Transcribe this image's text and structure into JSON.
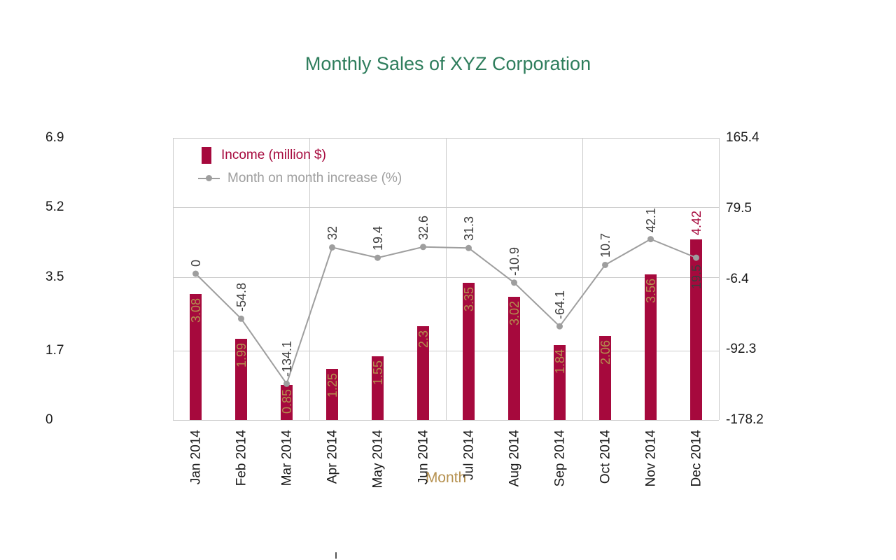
{
  "title": "Monthly Sales of XYZ Corporation",
  "chart_data": {
    "type": "combo",
    "title": "Monthly Sales of XYZ Corporation",
    "xlabel": "Month",
    "categories": [
      "Jan 2014",
      "Feb 2014",
      "Mar 2014",
      "Apr 2014",
      "May 2014",
      "Jun 2014",
      "Jul 2014",
      "Aug 2014",
      "Sep 2014",
      "Oct 2014",
      "Nov 2014",
      "Dec 2014"
    ],
    "x_grid_every": 3,
    "left_axis": {
      "min": 0,
      "max": 6.9,
      "tick_values": [
        0,
        1.7,
        3.5,
        5.2,
        6.9
      ],
      "tick_labels": [
        "0",
        "1.7",
        "3.5",
        "5.2",
        "6.9"
      ]
    },
    "right_axis": {
      "min": -178.2,
      "max": 165.4,
      "tick_values": [
        -178.2,
        -92.3,
        -6.4,
        79.5,
        165.4
      ],
      "tick_labels": [
        "-178.2",
        "-92.3",
        "-6.4",
        "79.5",
        "165.4"
      ]
    },
    "series": [
      {
        "name": "Income (million $)",
        "type": "bar",
        "axis": "left",
        "color": "#a6093d",
        "values": [
          3.08,
          1.99,
          0.85,
          1.25,
          1.55,
          2.3,
          3.35,
          3.02,
          1.84,
          2.06,
          3.56,
          4.42
        ],
        "labels": [
          "3.08",
          "1.99",
          "0.85",
          "1.25",
          "1.55",
          "2.3",
          "3.35",
          "3.02",
          "1.84",
          "2.06",
          "3.56",
          "4.42"
        ],
        "label_placements": [
          "inside",
          "inside",
          "inside",
          "inside",
          "inside",
          "inside",
          "inside",
          "inside",
          "inside",
          "inside",
          "inside",
          "above"
        ]
      },
      {
        "name": "Month on month increase (%)",
        "type": "line",
        "axis": "right",
        "color": "#9e9e9e",
        "values": [
          0,
          -54.8,
          -134.1,
          32,
          19.4,
          32.6,
          31.3,
          -10.9,
          -64.1,
          10.7,
          42.1,
          19.5
        ],
        "labels": [
          "0",
          "-54.8",
          "-134.1",
          "32",
          "19.4",
          "32.6",
          "31.3",
          "-10.9",
          "-64.1",
          "10.7",
          "42.1",
          "19.5"
        ],
        "label_placements": [
          "above",
          "above",
          "above",
          "above",
          "above",
          "above",
          "above",
          "above",
          "above",
          "above",
          "above",
          "below"
        ]
      }
    ],
    "legend_position": "top-left-inside",
    "grid": true
  },
  "colors": {
    "title": "#2e7d5c",
    "bar": "#a6093d",
    "line": "#9e9e9e",
    "bar_annotation": "#b5904e",
    "line_annotation": "#3d3d3d",
    "axis_title": "#b5904e",
    "tick_label": "#1a1a1a",
    "gridline": "#cccccc",
    "background": "#ffffff"
  }
}
